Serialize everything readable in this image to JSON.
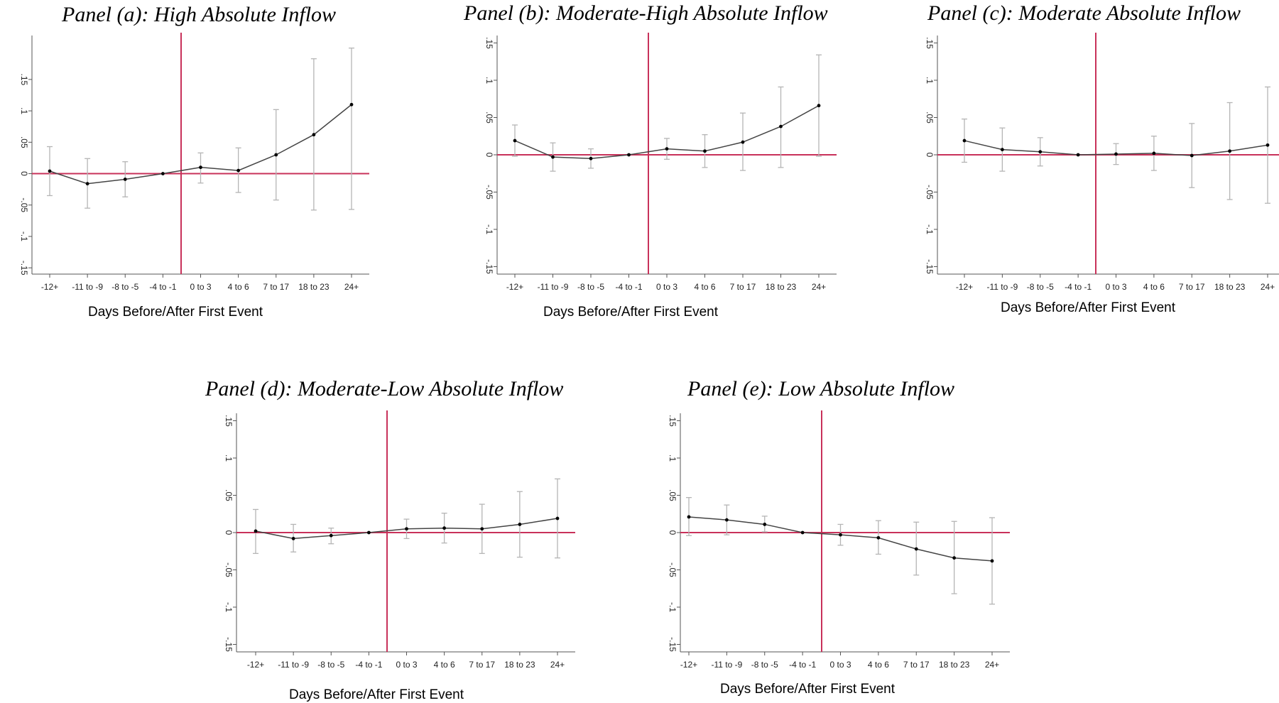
{
  "x_axis_label": "Days Before/After First Event",
  "colors": {
    "reference_lines": "#c8315a",
    "series": "#444444",
    "ci": "#b5b5b5",
    "axis": "#555555"
  },
  "chart_data": [
    {
      "type": "line",
      "title": "Panel (a): High Absolute Inflow",
      "xlabel": "Days Before/After First Event",
      "ylabel": "",
      "categories": [
        "-12+",
        "-11 to -9",
        "-8 to -5",
        "-4 to -1",
        "0 to 3",
        "4 to 6",
        "7 to 17",
        "18 to 23",
        "24+"
      ],
      "yticks": [
        "-.15",
        "-.1",
        "-.05",
        "0",
        ".05",
        ".1",
        ".15"
      ],
      "yticks_values": [
        -0.15,
        -0.1,
        -0.05,
        0,
        0.05,
        0.1,
        0.15
      ],
      "ylim": [
        -0.16,
        0.22
      ],
      "series": [
        {
          "values": [
            0.004,
            -0.016,
            -0.009,
            0.0,
            0.01,
            0.005,
            0.03,
            0.062,
            0.11
          ],
          "ci_lower": [
            -0.035,
            -0.055,
            -0.037,
            0.0,
            -0.015,
            -0.03,
            -0.042,
            -0.058,
            -0.057
          ],
          "ci_upper": [
            0.043,
            0.024,
            0.019,
            0.0,
            0.033,
            0.041,
            0.102,
            0.183,
            0.2
          ]
        }
      ],
      "reference_lines": {
        "y": 0,
        "x_between": [
          "-4 to -1",
          "0 to 3"
        ]
      },
      "grid": false
    },
    {
      "type": "line",
      "title": "Panel (b): Moderate-High Absolute Inflow",
      "xlabel": "Days Before/After First Event",
      "ylabel": "",
      "categories": [
        "-12+",
        "-11 to -9",
        "-8 to -5",
        "-4 to -1",
        "0 to 3",
        "4 to 6",
        "7 to 17",
        "18 to 23",
        "24+"
      ],
      "yticks": [
        "-.15",
        "-.1",
        "-.05",
        "0",
        ".05",
        ".1",
        ".15"
      ],
      "yticks_values": [
        -0.15,
        -0.1,
        -0.05,
        0,
        0.05,
        0.1,
        0.15
      ],
      "ylim": [
        -0.16,
        0.16
      ],
      "series": [
        {
          "values": [
            0.019,
            -0.003,
            -0.005,
            0.0,
            0.008,
            0.005,
            0.017,
            0.038,
            0.066
          ],
          "ci_lower": [
            -0.002,
            -0.022,
            -0.018,
            0.0,
            -0.006,
            -0.017,
            -0.021,
            -0.017,
            -0.002
          ],
          "ci_upper": [
            0.04,
            0.016,
            0.008,
            0.0,
            0.022,
            0.027,
            0.056,
            0.091,
            0.134
          ]
        }
      ],
      "reference_lines": {
        "y": 0,
        "x_between": [
          "-4 to -1",
          "0 to 3"
        ]
      },
      "grid": false
    },
    {
      "type": "line",
      "title": "Panel (c): Moderate Absolute Inflow",
      "xlabel": "Days Before/After First Event",
      "ylabel": "",
      "categories": [
        "-12+",
        "-11 to -9",
        "-8 to -5",
        "-4 to -1",
        "0 to 3",
        "4 to 6",
        "7 to 17",
        "18 to 23",
        "24+"
      ],
      "yticks": [
        "-.15",
        "-.1",
        "-.05",
        "0",
        ".05",
        ".1",
        ".15"
      ],
      "yticks_values": [
        -0.15,
        -0.1,
        -0.05,
        0,
        0.05,
        0.1,
        0.15
      ],
      "ylim": [
        -0.16,
        0.16
      ],
      "series": [
        {
          "values": [
            0.019,
            0.007,
            0.004,
            0.0,
            0.001,
            0.002,
            -0.001,
            0.005,
            0.013
          ],
          "ci_lower": [
            -0.01,
            -0.022,
            -0.015,
            0.0,
            -0.013,
            -0.021,
            -0.044,
            -0.06,
            -0.065
          ],
          "ci_upper": [
            0.048,
            0.036,
            0.023,
            0.0,
            0.015,
            0.025,
            0.042,
            0.07,
            0.091
          ]
        }
      ],
      "reference_lines": {
        "y": 0,
        "x_between": [
          "-4 to -1",
          "0 to 3"
        ]
      },
      "grid": false
    },
    {
      "type": "line",
      "title": "Panel (d): Moderate-Low Absolute Inflow",
      "xlabel": "Days Before/After First Event",
      "ylabel": "",
      "categories": [
        "-12+",
        "-11 to -9",
        "-8 to -5",
        "-4 to -1",
        "0 to 3",
        "4 to 6",
        "7 to 17",
        "18 to 23",
        "24+"
      ],
      "yticks": [
        "-.15",
        "-.1",
        "-.05",
        "0",
        ".05",
        ".1",
        ".15"
      ],
      "yticks_values": [
        -0.15,
        -0.1,
        -0.05,
        0,
        0.05,
        0.1,
        0.15
      ],
      "ylim": [
        -0.16,
        0.16
      ],
      "series": [
        {
          "values": [
            0.002,
            -0.008,
            -0.004,
            0.0,
            0.005,
            0.006,
            0.005,
            0.011,
            0.019
          ],
          "ci_lower": [
            -0.028,
            -0.026,
            -0.015,
            0.0,
            -0.008,
            -0.014,
            -0.028,
            -0.033,
            -0.034
          ],
          "ci_upper": [
            0.031,
            0.011,
            0.006,
            0.0,
            0.018,
            0.026,
            0.038,
            0.055,
            0.072
          ]
        }
      ],
      "reference_lines": {
        "y": 0,
        "x_between": [
          "-4 to -1",
          "0 to 3"
        ]
      },
      "grid": false
    },
    {
      "type": "line",
      "title": "Panel (e): Low Absolute Inflow",
      "xlabel": "Days Before/After First Event",
      "ylabel": "",
      "categories": [
        "-12+",
        "-11 to -9",
        "-8 to -5",
        "-4 to -1",
        "0 to 3",
        "4 to 6",
        "7 to 17",
        "18 to 23",
        "24+"
      ],
      "yticks": [
        "-.15",
        "-.1",
        "-.05",
        "0",
        ".05",
        ".1",
        ".15"
      ],
      "yticks_values": [
        -0.15,
        -0.1,
        -0.05,
        0,
        0.05,
        0.1,
        0.15
      ],
      "ylim": [
        -0.16,
        0.16
      ],
      "series": [
        {
          "values": [
            0.021,
            0.017,
            0.011,
            0.0,
            -0.003,
            -0.007,
            -0.022,
            -0.034,
            -0.038
          ],
          "ci_lower": [
            -0.004,
            -0.003,
            0.001,
            0.0,
            -0.017,
            -0.029,
            -0.057,
            -0.082,
            -0.096
          ],
          "ci_upper": [
            0.047,
            0.037,
            0.022,
            0.0,
            0.011,
            0.016,
            0.014,
            0.015,
            0.02
          ]
        }
      ],
      "reference_lines": {
        "y": 0,
        "x_between": [
          "-4 to -1",
          "0 to 3"
        ]
      },
      "grid": false
    }
  ]
}
